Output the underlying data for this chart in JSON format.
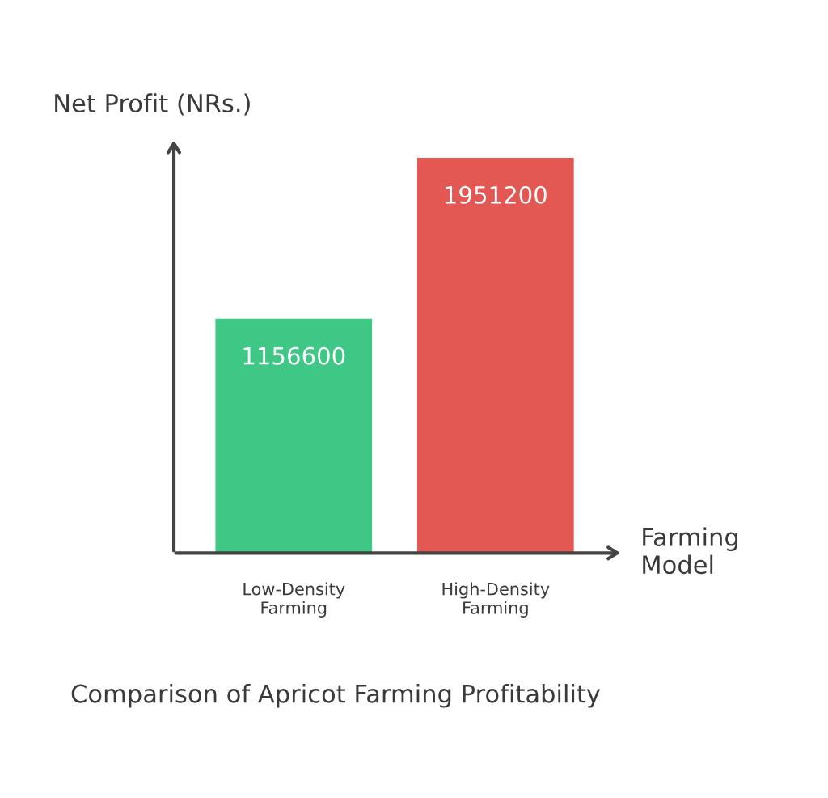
{
  "chart_data": {
    "type": "bar",
    "title": "Comparison of Apricot Farming Profitability",
    "xlabel": "Farming Model",
    "ylabel": "Net Profit (NRs.)",
    "categories": [
      "Low-Density\nFarming",
      "High-Density\nFarming"
    ],
    "values": [
      1156600,
      1951200
    ],
    "colors": [
      "#3fc785",
      "#e35853"
    ],
    "data_labels": true,
    "grid": false,
    "legend": false
  }
}
